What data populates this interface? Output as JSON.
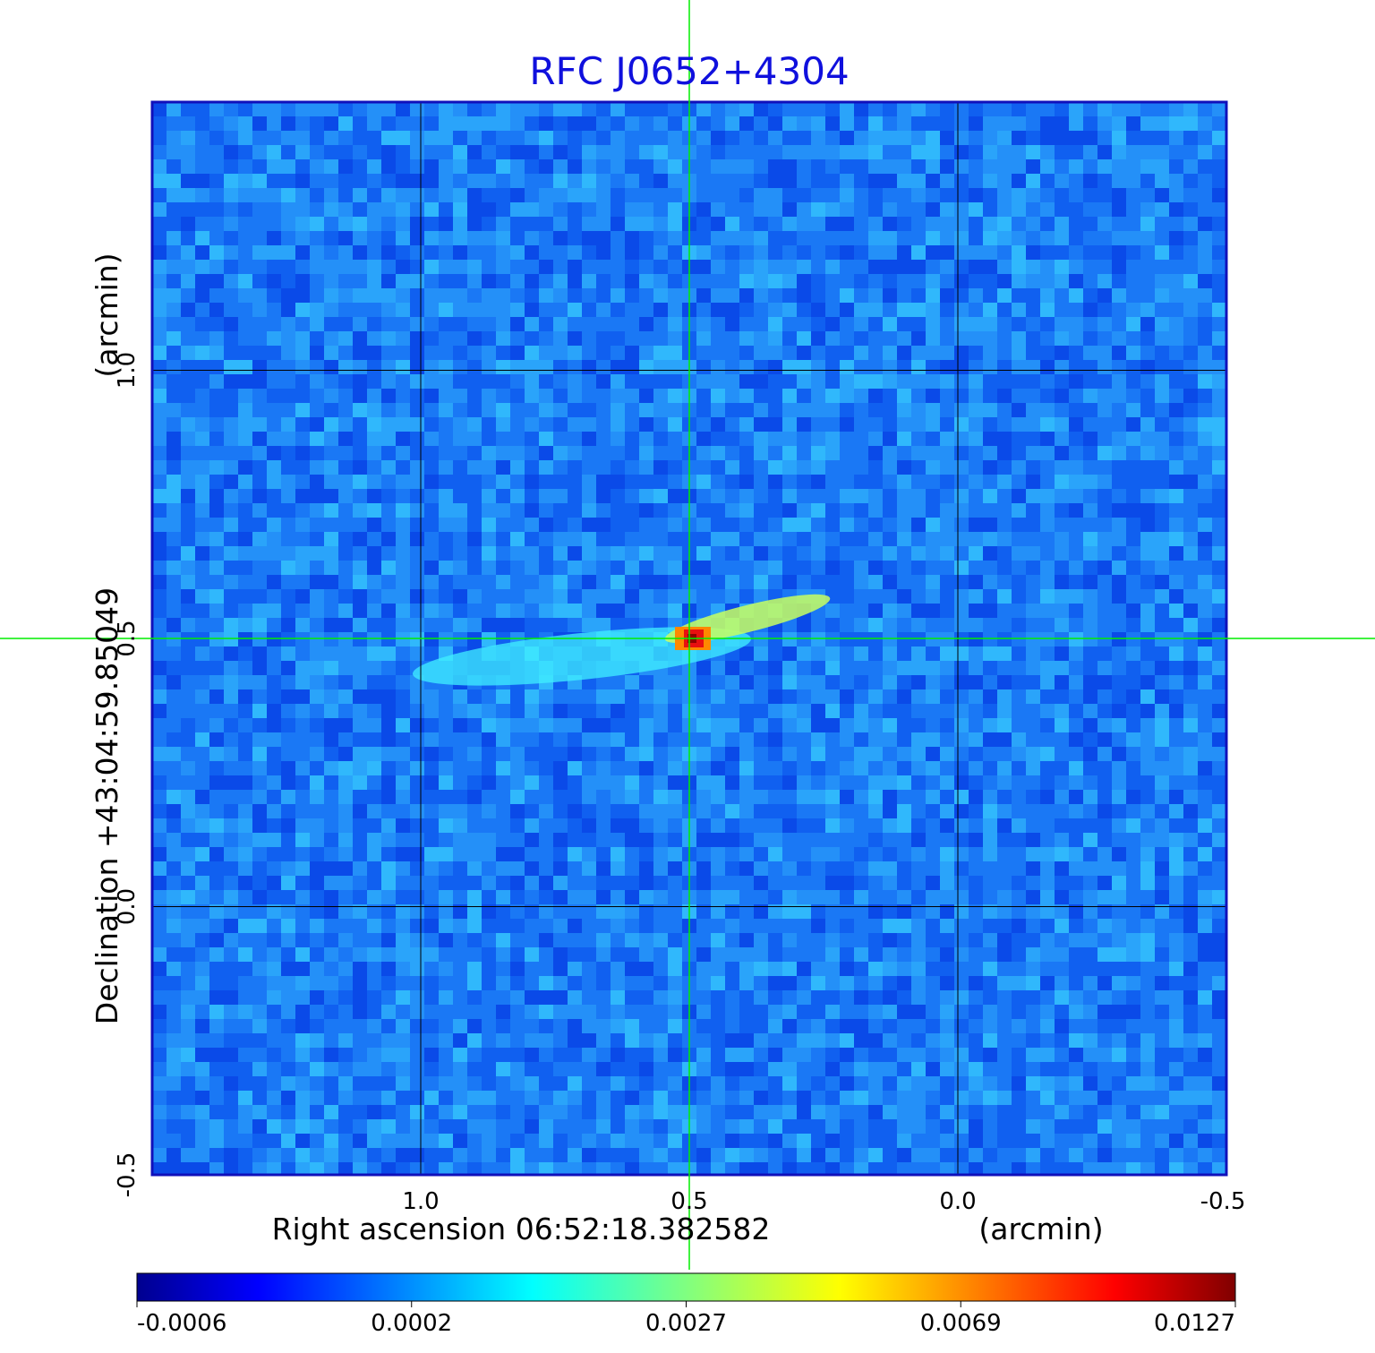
{
  "chart_data": {
    "type": "heatmap",
    "title": "RFC J0652+4304",
    "xlabel": "Right ascension  06:52:18.382582",
    "xunit": "(arcmin)",
    "ylabel": "Declination  +43:04:59.85049",
    "yunit": "(arcmin)",
    "xlim": [
      1.5,
      -0.5
    ],
    "ylim": [
      -0.5,
      1.5
    ],
    "x_ticks": [
      1.0,
      0.5,
      0.0,
      -0.5
    ],
    "x_tick_labels": [
      "1.0",
      "0.5",
      "0.0",
      "-0.5"
    ],
    "y_ticks": [
      -0.5,
      0.0,
      0.5,
      1.0
    ],
    "y_tick_labels": [
      "-0.5",
      "0.0",
      "0.5",
      "1.0"
    ],
    "grid": true,
    "crosshair": {
      "x": 0.5,
      "y": 0.5,
      "color": "#00ee00"
    },
    "peak": {
      "x": 0.5,
      "y": 0.5,
      "value": 0.0127
    },
    "colorbar": {
      "position": "bottom",
      "ticks": [
        -0.0006,
        0.0002,
        0.0027,
        0.0069,
        0.0127
      ],
      "tick_labels": [
        "-0.0006",
        "0.0002",
        "0.0027",
        "0.0069",
        "0.0127"
      ],
      "colormap": "jet"
    }
  },
  "colors": {
    "title": "#1010dd",
    "frame": "#1010bb",
    "grid": "#000000",
    "crosshair": "#00ee00"
  }
}
